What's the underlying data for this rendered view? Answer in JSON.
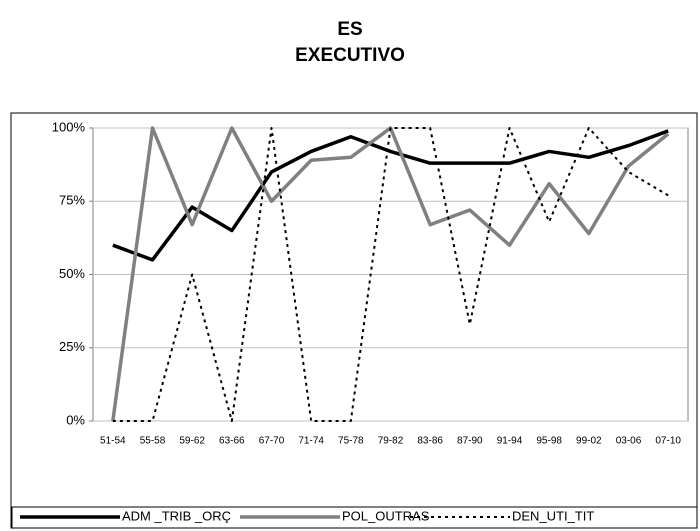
{
  "chart_data": {
    "type": "line",
    "title": "ES",
    "subtitle": "EXECUTIVO",
    "categories": [
      "51-54",
      "55-58",
      "59-62",
      "63-66",
      "67-70",
      "71-74",
      "75-78",
      "79-82",
      "83-86",
      "87-90",
      "91-94",
      "95-98",
      "99-02",
      "03-06",
      "07-10"
    ],
    "series": [
      {
        "name": "ADM _TRIB _ORÇ",
        "color": "#000000",
        "line_style": "solid",
        "values": [
          60,
          55,
          73,
          65,
          85,
          92,
          97,
          92,
          88,
          88,
          88,
          92,
          90,
          94,
          99
        ]
      },
      {
        "name": "POL_OUTRAS",
        "color": "#808080",
        "line_style": "solid",
        "values": [
          0,
          100,
          67,
          100,
          75,
          89,
          90,
          100,
          67,
          72,
          60,
          81,
          64,
          87,
          98
        ]
      },
      {
        "name": "DEN_UTI_TIT",
        "color": "#000000",
        "line_style": "dotted",
        "values": [
          0,
          0,
          50,
          0,
          100,
          0,
          0,
          100,
          100,
          33,
          100,
          68,
          100,
          85,
          77
        ]
      }
    ],
    "ylim": [
      0,
      100
    ],
    "yticks": [
      {
        "value": 0,
        "label": "0%"
      },
      {
        "value": 25,
        "label": "25%"
      },
      {
        "value": 50,
        "label": "50%"
      },
      {
        "value": 75,
        "label": "75%"
      },
      {
        "value": 100,
        "label": "100%"
      }
    ],
    "grid": true,
    "legend": "bottom"
  }
}
